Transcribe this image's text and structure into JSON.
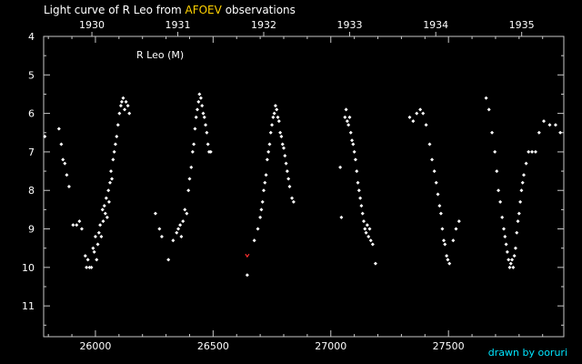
{
  "chart_data": {
    "type": "scatter",
    "title_prefix": "Light curve of R Leo from",
    "title_accent": "AFOEV",
    "title_suffix": "observations",
    "series_label": "R Leo (M)",
    "credit": "drawn by ooruri",
    "xlim": [
      25780,
      27990
    ],
    "ylim": [
      4,
      11.8
    ],
    "y_inverted": true,
    "x_ticks": [
      26000,
      26500,
      27000,
      27500
    ],
    "x_tick_labels": [
      "26000",
      "26500",
      "27000",
      "27500"
    ],
    "year_ticks": [
      25985,
      26350,
      26715,
      27080,
      27446,
      27811
    ],
    "year_labels": [
      "1930",
      "1931",
      "1932",
      "1933",
      "1934",
      "1935"
    ],
    "y_ticks": [
      4,
      5,
      6,
      7,
      8,
      9,
      10,
      11
    ],
    "y_tick_labels": [
      "4",
      "5",
      "6",
      "7",
      "8",
      "9",
      "10",
      "11"
    ],
    "point_color": "#ffffff",
    "special_color": "#ff3030",
    "special_points": [
      [
        26645,
        9.7
      ]
    ],
    "points": [
      [
        25785,
        6.6
      ],
      [
        25845,
        6.4
      ],
      [
        25855,
        6.8
      ],
      [
        25862,
        7.2
      ],
      [
        25870,
        7.3
      ],
      [
        25878,
        7.6
      ],
      [
        25888,
        7.9
      ],
      [
        25905,
        8.9
      ],
      [
        25920,
        8.9
      ],
      [
        25932,
        8.8
      ],
      [
        25942,
        9.0
      ],
      [
        25957,
        9.7
      ],
      [
        25962,
        10.0
      ],
      [
        25968,
        9.8
      ],
      [
        25975,
        10.0
      ],
      [
        25983,
        10.0
      ],
      [
        25990,
        9.5
      ],
      [
        25995,
        9.6
      ],
      [
        26000,
        9.2
      ],
      [
        26005,
        9.8
      ],
      [
        26010,
        9.4
      ],
      [
        26015,
        9.1
      ],
      [
        26020,
        8.9
      ],
      [
        26025,
        9.2
      ],
      [
        26030,
        8.5
      ],
      [
        26033,
        8.8
      ],
      [
        26038,
        8.4
      ],
      [
        26042,
        8.6
      ],
      [
        26046,
        8.2
      ],
      [
        26050,
        8.7
      ],
      [
        26055,
        8.0
      ],
      [
        26058,
        8.3
      ],
      [
        26062,
        7.8
      ],
      [
        26066,
        7.5
      ],
      [
        26070,
        7.7
      ],
      [
        26075,
        7.2
      ],
      [
        26080,
        7.0
      ],
      [
        26085,
        6.8
      ],
      [
        26090,
        6.6
      ],
      [
        26096,
        6.3
      ],
      [
        26102,
        6.0
      ],
      [
        26108,
        5.8
      ],
      [
        26112,
        5.7
      ],
      [
        26118,
        5.6
      ],
      [
        26124,
        5.9
      ],
      [
        26130,
        5.7
      ],
      [
        26138,
        5.8
      ],
      [
        26144,
        6.0
      ],
      [
        26255,
        8.6
      ],
      [
        26272,
        9.0
      ],
      [
        26282,
        9.2
      ],
      [
        26310,
        9.8
      ],
      [
        26330,
        9.3
      ],
      [
        26345,
        9.1
      ],
      [
        26352,
        9.0
      ],
      [
        26360,
        8.9
      ],
      [
        26365,
        9.2
      ],
      [
        26372,
        8.8
      ],
      [
        26380,
        8.5
      ],
      [
        26388,
        8.6
      ],
      [
        26395,
        8.0
      ],
      [
        26400,
        7.7
      ],
      [
        26407,
        7.4
      ],
      [
        26413,
        7.0
      ],
      [
        26418,
        6.8
      ],
      [
        26423,
        6.4
      ],
      [
        26428,
        6.1
      ],
      [
        26433,
        5.9
      ],
      [
        26438,
        5.7
      ],
      [
        26442,
        5.5
      ],
      [
        26448,
        5.6
      ],
      [
        26453,
        5.8
      ],
      [
        26458,
        6.0
      ],
      [
        26463,
        6.1
      ],
      [
        26468,
        6.3
      ],
      [
        26473,
        6.5
      ],
      [
        26478,
        6.8
      ],
      [
        26483,
        7.0
      ],
      [
        26490,
        7.0
      ],
      [
        26645,
        10.2
      ],
      [
        26675,
        9.3
      ],
      [
        26690,
        9.0
      ],
      [
        26700,
        8.7
      ],
      [
        26705,
        8.5
      ],
      [
        26710,
        8.3
      ],
      [
        26715,
        8.0
      ],
      [
        26720,
        7.8
      ],
      [
        26725,
        7.6
      ],
      [
        26730,
        7.2
      ],
      [
        26735,
        7.0
      ],
      [
        26740,
        6.8
      ],
      [
        26745,
        6.5
      ],
      [
        26750,
        6.3
      ],
      [
        26755,
        6.1
      ],
      [
        26760,
        6.0
      ],
      [
        26765,
        5.8
      ],
      [
        26770,
        5.9
      ],
      [
        26775,
        6.1
      ],
      [
        26780,
        6.2
      ],
      [
        26785,
        6.5
      ],
      [
        26790,
        6.6
      ],
      [
        26795,
        6.8
      ],
      [
        26800,
        6.9
      ],
      [
        26805,
        7.1
      ],
      [
        26810,
        7.3
      ],
      [
        26815,
        7.5
      ],
      [
        26820,
        7.7
      ],
      [
        26825,
        7.9
      ],
      [
        26835,
        8.2
      ],
      [
        26842,
        8.3
      ],
      [
        27040,
        7.4
      ],
      [
        27045,
        8.7
      ],
      [
        27060,
        6.1
      ],
      [
        27065,
        5.9
      ],
      [
        27070,
        6.2
      ],
      [
        27075,
        6.3
      ],
      [
        27080,
        6.1
      ],
      [
        27085,
        6.5
      ],
      [
        27090,
        6.7
      ],
      [
        27095,
        6.8
      ],
      [
        27100,
        7.0
      ],
      [
        27105,
        7.2
      ],
      [
        27110,
        7.5
      ],
      [
        27115,
        7.8
      ],
      [
        27120,
        8.0
      ],
      [
        27125,
        8.2
      ],
      [
        27130,
        8.4
      ],
      [
        27135,
        8.6
      ],
      [
        27140,
        8.8
      ],
      [
        27145,
        9.0
      ],
      [
        27150,
        9.1
      ],
      [
        27155,
        8.9
      ],
      [
        27160,
        9.2
      ],
      [
        27165,
        9.0
      ],
      [
        27170,
        9.3
      ],
      [
        27178,
        9.4
      ],
      [
        27190,
        9.9
      ],
      [
        27335,
        6.1
      ],
      [
        27350,
        6.2
      ],
      [
        27365,
        6.0
      ],
      [
        27380,
        5.9
      ],
      [
        27392,
        6.0
      ],
      [
        27405,
        6.3
      ],
      [
        27420,
        6.8
      ],
      [
        27430,
        7.2
      ],
      [
        27440,
        7.5
      ],
      [
        27448,
        7.8
      ],
      [
        27455,
        8.1
      ],
      [
        27462,
        8.4
      ],
      [
        27468,
        8.6
      ],
      [
        27474,
        9.0
      ],
      [
        27480,
        9.3
      ],
      [
        27485,
        9.4
      ],
      [
        27492,
        9.7
      ],
      [
        27497,
        9.8
      ],
      [
        27504,
        9.9
      ],
      [
        27520,
        9.3
      ],
      [
        27532,
        9.0
      ],
      [
        27545,
        8.8
      ],
      [
        27660,
        5.6
      ],
      [
        27672,
        5.9
      ],
      [
        27685,
        6.5
      ],
      [
        27697,
        7.0
      ],
      [
        27705,
        7.5
      ],
      [
        27712,
        8.0
      ],
      [
        27720,
        8.3
      ],
      [
        27728,
        8.7
      ],
      [
        27735,
        9.0
      ],
      [
        27740,
        9.2
      ],
      [
        27745,
        9.4
      ],
      [
        27750,
        9.6
      ],
      [
        27755,
        9.8
      ],
      [
        27760,
        10.0
      ],
      [
        27765,
        9.9
      ],
      [
        27770,
        9.8
      ],
      [
        27775,
        10.0
      ],
      [
        27780,
        9.7
      ],
      [
        27785,
        9.5
      ],
      [
        27790,
        9.1
      ],
      [
        27795,
        8.8
      ],
      [
        27800,
        8.6
      ],
      [
        27805,
        8.3
      ],
      [
        27810,
        8.0
      ],
      [
        27815,
        7.8
      ],
      [
        27820,
        7.6
      ],
      [
        27830,
        7.3
      ],
      [
        27840,
        7.0
      ],
      [
        27855,
        7.0
      ],
      [
        27870,
        7.0
      ],
      [
        27885,
        6.5
      ],
      [
        27905,
        6.2
      ],
      [
        27930,
        6.3
      ],
      [
        27955,
        6.3
      ],
      [
        27975,
        6.5
      ]
    ]
  }
}
